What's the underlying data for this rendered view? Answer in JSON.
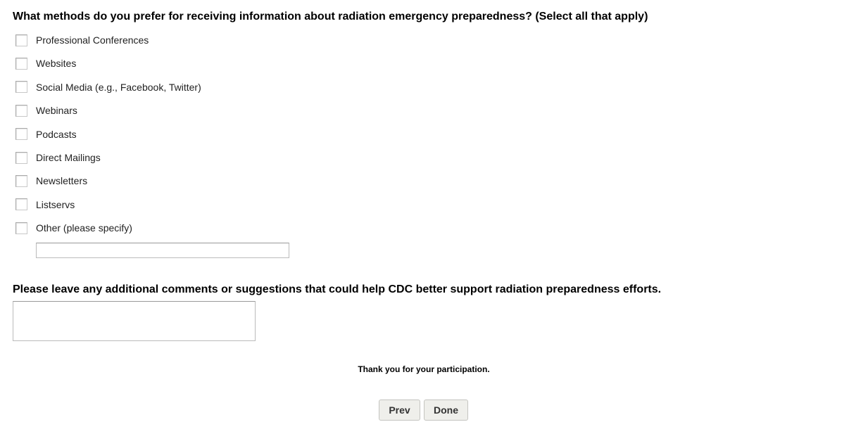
{
  "question1": {
    "title": "What methods do you prefer for receiving information about radiation emergency preparedness? (Select all that apply)",
    "options": [
      "Professional Conferences",
      "Websites",
      "Social Media (e.g., Facebook, Twitter)",
      "Webinars",
      "Podcasts",
      "Direct Mailings",
      "Newsletters",
      "Listservs",
      "Other (please specify)"
    ],
    "other_value": ""
  },
  "question2": {
    "title": "Please leave any additional comments or suggestions that could help CDC better support radiation preparedness efforts.",
    "value": ""
  },
  "footer": {
    "thanks": "Thank you for your participation.",
    "prev_label": "Prev",
    "done_label": "Done"
  }
}
